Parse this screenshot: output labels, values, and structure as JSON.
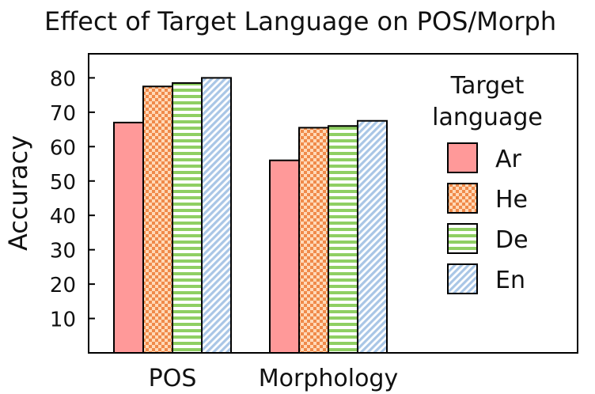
{
  "chart_data": {
    "type": "bar",
    "title": "Effect of Target Language on POS/Morph",
    "xlabel": "",
    "ylabel": "Accuracy",
    "categories": [
      "POS",
      "Morphology"
    ],
    "yticks": [
      10,
      20,
      30,
      40,
      50,
      60,
      70,
      80
    ],
    "ylim": [
      0,
      87
    ],
    "grid": false,
    "legend": {
      "title": "Target language",
      "title_lines": [
        "Target",
        "language"
      ],
      "position": "right"
    },
    "series": [
      {
        "name": "Ar",
        "values": [
          67,
          56
        ],
        "color": "#ff9999",
        "pattern": "solid"
      },
      {
        "name": "He",
        "values": [
          77.5,
          65.5
        ],
        "color": "#ff9966",
        "pattern": "checker"
      },
      {
        "name": "De",
        "values": [
          78.5,
          66
        ],
        "color": "#88cc66",
        "pattern": "horizontal-stripes"
      },
      {
        "name": "En",
        "values": [
          80,
          67.5
        ],
        "color": "#aaccee",
        "pattern": "diagonal-stripes"
      }
    ]
  }
}
